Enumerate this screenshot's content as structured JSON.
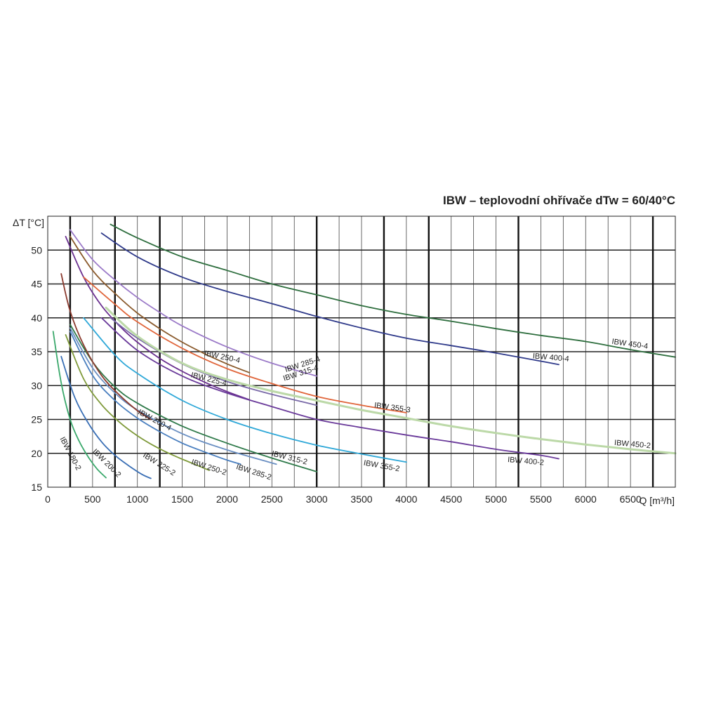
{
  "chart_data": {
    "type": "line",
    "title": "IBW – teplovodní ohřívače dTw = 60/40°C",
    "xlabel": "Q [m³/h]",
    "ylabel": "ΔT [°C]",
    "xlim": [
      0,
      7000
    ],
    "ylim": [
      15,
      55
    ],
    "x_ticks": [
      0,
      500,
      1000,
      1500,
      2000,
      2500,
      3000,
      3500,
      4000,
      4500,
      5000,
      5500,
      6000,
      6500
    ],
    "y_ticks": [
      15,
      20,
      25,
      30,
      35,
      40,
      45,
      50
    ],
    "x_minor_step": 250,
    "y_minor_step": 5,
    "x_major_lines": [
      250,
      750,
      1250,
      3000,
      3750,
      4250,
      5250,
      6750
    ],
    "grid": true,
    "series": [
      {
        "name": "IBW 180-2",
        "color": "#3aa86b",
        "x": [
          60,
          150,
          250,
          350,
          450,
          550,
          650
        ],
        "y": [
          38.0,
          30.4,
          25.0,
          21.8,
          19.5,
          17.7,
          16.4
        ],
        "label": {
          "at": [
            230,
            19.8
          ],
          "angle": 62
        }
      },
      {
        "name": "IBW 200-2",
        "color": "#3a6fb5",
        "x": [
          150,
          300,
          450,
          600,
          750,
          900,
          1050,
          1150
        ],
        "y": [
          34.3,
          28.3,
          24.5,
          21.7,
          19.7,
          18.2,
          16.9,
          16.3
        ],
        "label": {
          "at": [
            640,
            18.3
          ],
          "angle": 45
        }
      },
      {
        "name": "IBW 225-2",
        "color": "#7f9a3a",
        "x": [
          200,
          400,
          600,
          800,
          1000,
          1200,
          1400,
          1600,
          1800
        ],
        "y": [
          37.5,
          31.0,
          27.2,
          24.6,
          22.6,
          21.0,
          19.7,
          18.6,
          17.5
        ],
        "label": {
          "at": [
            1230,
            18.1
          ],
          "angle": 32
        }
      },
      {
        "name": "IBW 250-2",
        "color": "#4a7fbf",
        "x": [
          250,
          500,
          750,
          1000,
          1250,
          1500,
          1750,
          2000,
          2150
        ],
        "y": [
          38.0,
          31.5,
          27.8,
          25.2,
          23.2,
          21.5,
          20.2,
          19.0,
          18.4
        ],
        "label": {
          "at": [
            1790,
            17.6
          ],
          "angle": 18
        }
      },
      {
        "name": "IBW 285-2",
        "color": "#6a8fc2",
        "x": [
          250,
          500,
          750,
          1000,
          1500,
          2000,
          2550
        ],
        "y": [
          38.5,
          32.6,
          28.9,
          26.4,
          22.9,
          20.5,
          18.4
        ],
        "label": {
          "at": [
            2290,
            16.9
          ],
          "angle": 18
        }
      },
      {
        "name": "IBW 315-2",
        "color": "#2f7a4a",
        "x": [
          250,
          500,
          750,
          1000,
          1500,
          2000,
          2500,
          3000
        ],
        "y": [
          39.0,
          33.5,
          29.8,
          27.4,
          24.0,
          21.5,
          19.3,
          17.3
        ],
        "label": {
          "at": [
            2690,
            19.0
          ],
          "angle": 14
        }
      },
      {
        "name": "IBW 355-2",
        "color": "#2fa8d8",
        "x": [
          400,
          750,
          1000,
          1500,
          2000,
          2500,
          3000,
          3500,
          4000
        ],
        "y": [
          40.0,
          34.5,
          31.8,
          27.8,
          25.0,
          22.9,
          21.2,
          19.9,
          18.7
        ],
        "label": {
          "at": [
            3720,
            17.8
          ],
          "angle": 10
        }
      },
      {
        "name": "IBW 200-4",
        "color": "#8b3a2e",
        "x": [
          150,
          250,
          400,
          600,
          800,
          1000,
          1150
        ],
        "y": [
          46.5,
          41.0,
          36.0,
          31.5,
          28.6,
          26.3,
          25.0
        ],
        "label": {
          "at": [
            1180,
            24.6
          ],
          "angle": 28
        }
      },
      {
        "name": "IBW 225-4",
        "color": "#6a2f8f",
        "x": [
          200,
          400,
          600,
          800,
          1000,
          1250,
          1500,
          1750,
          2000,
          2250
        ],
        "y": [
          52.0,
          46.0,
          41.8,
          38.8,
          36.4,
          34.0,
          32.1,
          30.5,
          29.1,
          27.9
        ],
        "label": {
          "at": [
            1790,
            30.6
          ],
          "angle": 14
        }
      },
      {
        "name": "IBW 250-4",
        "color": "#8a5a2c",
        "x": [
          250,
          500,
          750,
          1000,
          1250,
          1500,
          1750,
          2000,
          2250
        ],
        "y": [
          52.0,
          47.0,
          43.6,
          40.7,
          38.4,
          36.4,
          34.7,
          33.2,
          31.9
        ],
        "label": {
          "at": [
            1940,
            33.9
          ],
          "angle": 12
        }
      },
      {
        "name": "IBW 285-4",
        "color": "#9b7ac8",
        "x": [
          250,
          500,
          750,
          1000,
          1250,
          1500,
          2000,
          2500,
          3000
        ],
        "y": [
          53.0,
          48.6,
          45.6,
          43.0,
          40.8,
          38.8,
          35.7,
          33.3,
          31.4
        ],
        "label": {
          "at": [
            2850,
            32.8
          ],
          "angle": -18
        }
      },
      {
        "name": "IBW 315-4",
        "color": "#7a6aa8",
        "x": [
          700,
          1000,
          1500,
          2000,
          2500,
          3000
        ],
        "y": [
          40.0,
          37.0,
          33.2,
          30.6,
          28.7,
          27.1
        ],
        "label": {
          "at": [
            2830,
            31.5
          ],
          "angle": -18
        }
      },
      {
        "name": "IBW 355-3",
        "color": "#e0653a",
        "x": [
          400,
          750,
          1000,
          1500,
          2000,
          2500,
          3000,
          3500,
          4000
        ],
        "y": [
          46.0,
          42.0,
          39.4,
          35.5,
          32.5,
          30.3,
          28.4,
          27.1,
          26.0
        ],
        "label": {
          "at": [
            3840,
            26.4
          ],
          "angle": 8
        }
      },
      {
        "name": "IBW 400-2",
        "color": "#6a3a9a",
        "x": [
          600,
          1000,
          1500,
          2000,
          2500,
          3000,
          3500,
          4000,
          4500,
          5000,
          5500,
          5700
        ],
        "y": [
          40.0,
          35.2,
          31.4,
          28.9,
          26.9,
          25.0,
          23.8,
          22.7,
          21.7,
          20.6,
          19.7,
          19.2
        ],
        "label": {
          "at": [
            5330,
            18.5
          ],
          "angle": 5
        }
      },
      {
        "name": "IBW 450-2",
        "color": "#bcd9a8",
        "x": [
          650,
          1000,
          1500,
          2000,
          2500,
          3000,
          3500,
          4000,
          4500,
          5000,
          5500,
          6000,
          6500,
          7000
        ],
        "y": [
          41.5,
          37.3,
          33.3,
          30.9,
          29.2,
          27.8,
          26.4,
          25.2,
          24.0,
          23.0,
          22.1,
          21.3,
          20.6,
          20.0
        ],
        "label": {
          "at": [
            6520,
            21.0
          ],
          "angle": 5
        }
      },
      {
        "name": "IBW 400-4",
        "color": "#2f3a8a",
        "x": [
          600,
          1000,
          1500,
          2000,
          2500,
          3000,
          3500,
          4000,
          4500,
          5000,
          5500,
          5700
        ],
        "y": [
          52.5,
          49.0,
          46.0,
          43.9,
          42.1,
          40.2,
          38.5,
          37.0,
          35.9,
          34.8,
          33.6,
          33.1
        ],
        "label": {
          "at": [
            5610,
            33.8
          ],
          "angle": 5
        }
      },
      {
        "name": "IBW 450-4",
        "color": "#2e6e3e",
        "x": [
          700,
          1000,
          1500,
          2000,
          2500,
          3000,
          3500,
          4000,
          4500,
          5000,
          5500,
          6000,
          6500,
          7000
        ],
        "y": [
          53.8,
          51.8,
          49.0,
          47.0,
          45.0,
          43.4,
          41.8,
          40.5,
          39.5,
          38.4,
          37.4,
          36.5,
          35.3,
          34.2
        ],
        "label": {
          "at": [
            6490,
            35.8
          ],
          "angle": 8
        }
      }
    ]
  }
}
